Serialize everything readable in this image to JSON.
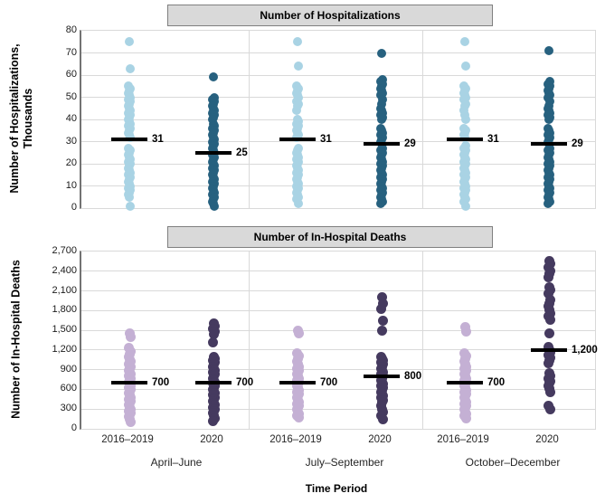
{
  "chart_data": [
    {
      "type": "strip",
      "title": "Number of Hospitalizations",
      "ylabel": [
        "Number of Hospitalizations,",
        "Thousands"
      ],
      "ylim": [
        0,
        80
      ],
      "grid": true,
      "ytick_values": [
        0,
        10,
        20,
        30,
        40,
        50,
        60,
        70,
        80
      ],
      "ytick_labels": [
        "0",
        "10",
        "20",
        "30",
        "40",
        "50",
        "60",
        "70",
        "80"
      ],
      "panels": [
        {
          "period": "April–June",
          "groups": [
            {
              "name": "2016–2019",
              "color": "#a9d3e4",
              "median": 31,
              "median_label": "31",
              "values": [
                75,
                63,
                55,
                54,
                53,
                52,
                51,
                50,
                49,
                48,
                47,
                46,
                45,
                44,
                43,
                42,
                41,
                40,
                39,
                38,
                37,
                36,
                35,
                34,
                33,
                32,
                27,
                26,
                25,
                24,
                23,
                22,
                21,
                20,
                19,
                18,
                17,
                16,
                15,
                14,
                13,
                12,
                11,
                10,
                9,
                8,
                7,
                6,
                5,
                1
              ]
            },
            {
              "name": "2020",
              "color": "#27617f",
              "median": 25,
              "median_label": "25",
              "values": [
                59,
                50,
                49,
                48,
                47,
                46,
                45,
                44,
                43,
                42,
                41,
                40,
                38,
                37,
                36,
                35,
                34,
                33,
                32,
                31,
                30,
                29,
                28,
                27,
                26,
                25,
                24,
                23,
                22,
                21,
                20,
                19,
                18,
                17,
                16,
                15,
                14,
                13,
                12,
                11,
                10,
                9,
                8,
                7,
                6,
                5,
                4,
                3,
                2,
                1
              ]
            }
          ]
        },
        {
          "period": "July–September",
          "groups": [
            {
              "name": "2016–2019",
              "color": "#a9d3e4",
              "median": 31,
              "median_label": "31",
              "values": [
                75,
                64,
                55,
                54,
                53,
                52,
                51,
                50,
                48,
                47,
                46,
                44,
                40,
                39,
                38,
                37,
                36,
                35,
                34,
                33,
                32,
                27,
                26,
                25,
                24,
                23,
                22,
                21,
                20,
                19,
                18,
                17,
                16,
                15,
                14,
                13,
                12,
                11,
                10,
                9,
                8,
                7,
                6,
                5,
                4,
                2
              ]
            },
            {
              "name": "2020",
              "color": "#27617f",
              "median": 29,
              "median_label": "29",
              "values": [
                70,
                58,
                57,
                56,
                55,
                54,
                53,
                52,
                51,
                49,
                47,
                45,
                44,
                43,
                42,
                41,
                40,
                36,
                35,
                34,
                33,
                32,
                31,
                30,
                29,
                27,
                26,
                25,
                24,
                23,
                22,
                21,
                20,
                19,
                18,
                17,
                16,
                15,
                14,
                13,
                12,
                11,
                10,
                9,
                8,
                7,
                6,
                5,
                4,
                3,
                2
              ]
            }
          ]
        },
        {
          "period": "October–December",
          "groups": [
            {
              "name": "2016–2019",
              "color": "#a9d3e4",
              "median": 31,
              "median_label": "31",
              "values": [
                75,
                64,
                55,
                54,
                53,
                52,
                51,
                50,
                49,
                47,
                46,
                44,
                42,
                40,
                36,
                35,
                34,
                33,
                32,
                28,
                27,
                26,
                25,
                24,
                23,
                22,
                21,
                20,
                19,
                18,
                17,
                16,
                15,
                14,
                13,
                12,
                11,
                10,
                9,
                8,
                7,
                6,
                5,
                4,
                3,
                1
              ]
            },
            {
              "name": "2020",
              "color": "#27617f",
              "median": 29,
              "median_label": "29",
              "values": [
                71,
                57,
                56,
                55,
                54,
                53,
                52,
                51,
                50,
                48,
                46,
                45,
                44,
                43,
                42,
                41,
                40,
                36,
                35,
                34,
                33,
                32,
                31,
                30,
                29,
                27,
                26,
                25,
                24,
                23,
                22,
                21,
                20,
                19,
                18,
                17,
                16,
                15,
                14,
                13,
                12,
                11,
                10,
                9,
                8,
                7,
                6,
                5,
                4,
                3,
                2
              ]
            }
          ]
        }
      ]
    },
    {
      "type": "strip",
      "title": "Number of In-Hospital Deaths",
      "ylabel": [
        "Number of In-Hospital Deaths"
      ],
      "ylim": [
        0,
        2700
      ],
      "grid": true,
      "ytick_values": [
        0,
        300,
        600,
        900,
        1200,
        1500,
        1800,
        2100,
        2400,
        2700
      ],
      "ytick_labels": [
        "0",
        "300",
        "600",
        "900",
        "1,200",
        "1,500",
        "1,800",
        "2,100",
        "2,400",
        "2,700"
      ],
      "panels": [
        {
          "period": "April–June",
          "groups": [
            {
              "name": "2016–2019",
              "color": "#c4b0d4",
              "median": 700,
              "median_label": "700",
              "values": [
                1450,
                1400,
                1230,
                1180,
                1140,
                1100,
                1060,
                1020,
                980,
                950,
                920,
                890,
                860,
                830,
                800,
                770,
                740,
                710,
                690,
                660,
                630,
                600,
                570,
                540,
                510,
                480,
                450,
                420,
                390,
                360,
                330,
                300,
                270,
                240,
                210,
                180,
                150,
                110
              ]
            },
            {
              "name": "2020",
              "color": "#453a5f",
              "median": 700,
              "median_label": "700",
              "values": [
                1600,
                1560,
                1520,
                1480,
                1440,
                1320,
                1100,
                1070,
                1040,
                1010,
                980,
                950,
                920,
                890,
                860,
                830,
                800,
                770,
                740,
                710,
                690,
                660,
                630,
                600,
                570,
                540,
                510,
                480,
                450,
                420,
                390,
                360,
                330,
                300,
                270,
                240,
                200,
                160,
                120
              ]
            }
          ]
        },
        {
          "period": "July–September",
          "groups": [
            {
              "name": "2016–2019",
              "color": "#c4b0d4",
              "median": 700,
              "median_label": "700",
              "values": [
                1500,
                1450,
                1150,
                1110,
                1070,
                1030,
                990,
                950,
                920,
                890,
                860,
                830,
                800,
                770,
                740,
                710,
                680,
                650,
                620,
                590,
                560,
                530,
                500,
                470,
                440,
                410,
                380,
                350,
                320,
                290,
                260,
                230,
                200,
                170
              ]
            },
            {
              "name": "2020",
              "color": "#453a5f",
              "median": 800,
              "median_label": "800",
              "values": [
                2000,
                1910,
                1820,
                1650,
                1500,
                1100,
                1070,
                1040,
                1010,
                980,
                950,
                920,
                890,
                860,
                830,
                800,
                770,
                740,
                710,
                680,
                650,
                620,
                590,
                560,
                530,
                500,
                470,
                440,
                400,
                350,
                300,
                250,
                200,
                150
              ]
            }
          ]
        },
        {
          "period": "October–December",
          "groups": [
            {
              "name": "2016–2019",
              "color": "#c4b0d4",
              "median": 700,
              "median_label": "700",
              "values": [
                1550,
                1480,
                1150,
                1110,
                1070,
                1030,
                990,
                950,
                920,
                890,
                860,
                830,
                800,
                770,
                740,
                710,
                680,
                650,
                620,
                590,
                560,
                530,
                500,
                470,
                440,
                410,
                380,
                350,
                320,
                290,
                260,
                230,
                200,
                160
              ]
            },
            {
              "name": "2020",
              "color": "#453a5f",
              "median": 1200,
              "median_label": "1,200",
              "values": [
                2560,
                2510,
                2460,
                2410,
                2360,
                2310,
                2160,
                2110,
                2060,
                1960,
                1910,
                1860,
                1810,
                1760,
                1710,
                1660,
                1450,
                1250,
                1200,
                1160,
                1120,
                1080,
                1040,
                1000,
                850,
                810,
                770,
                730,
                690,
                650,
                610,
                560,
                350,
                300
              ]
            }
          ]
        }
      ]
    }
  ],
  "xaxis": {
    "title": "Time Period",
    "group_labels": [
      "2016–2019",
      "2020"
    ],
    "panel_labels": [
      "April–June",
      "July–September",
      "October–December"
    ]
  },
  "styles": {
    "grid_color": "#d9d9d9",
    "axis_line_color": "#737373",
    "title_box_bg": "#d9d9d9",
    "title_box_border": "#7f7f7f",
    "median_line_color": "#000000"
  }
}
